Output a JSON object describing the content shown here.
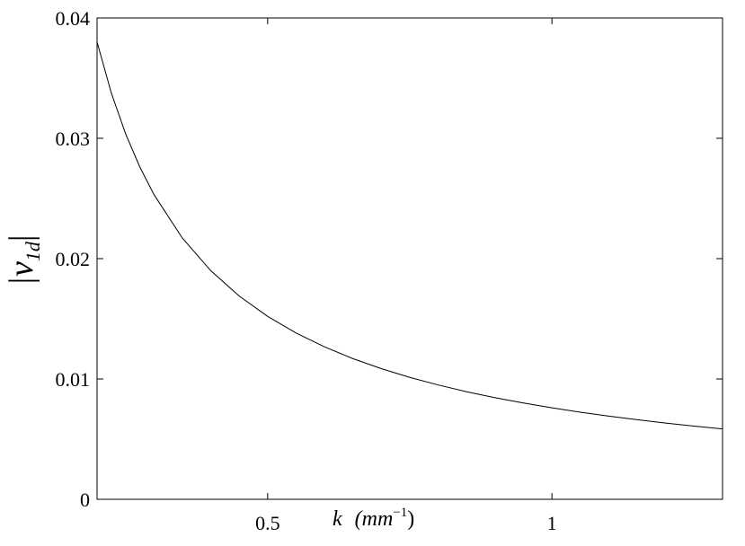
{
  "chart_data": {
    "type": "line",
    "xlabel": [
      "k",
      "(mm",
      "−1",
      ")"
    ],
    "ylabel": [
      "|v",
      "1d",
      "|"
    ],
    "x": [
      0.2,
      0.225,
      0.25,
      0.275,
      0.3,
      0.35,
      0.4,
      0.45,
      0.5,
      0.55,
      0.6,
      0.65,
      0.7,
      0.75,
      0.8,
      0.85,
      0.9,
      0.95,
      1.0,
      1.05,
      1.1,
      1.15,
      1.2,
      1.25,
      1.3
    ],
    "series": [
      {
        "color": "#000000",
        "values": [
          0.038,
          0.03378,
          0.0304,
          0.02764,
          0.02533,
          0.02171,
          0.019,
          0.01689,
          0.0152,
          0.01382,
          0.01267,
          0.01169,
          0.01086,
          0.01013,
          0.0095,
          0.00894,
          0.00844,
          0.008,
          0.0076,
          0.00724,
          0.00691,
          0.00661,
          0.00633,
          0.00608,
          0.00585
        ]
      }
    ],
    "xlim": [
      0.2,
      1.3
    ],
    "xticks": [
      0.5,
      1
    ],
    "ylim": [
      0,
      0.04
    ],
    "yticks": [
      0,
      0.01,
      0.02,
      0.03,
      0.04
    ],
    "grid": false
  }
}
